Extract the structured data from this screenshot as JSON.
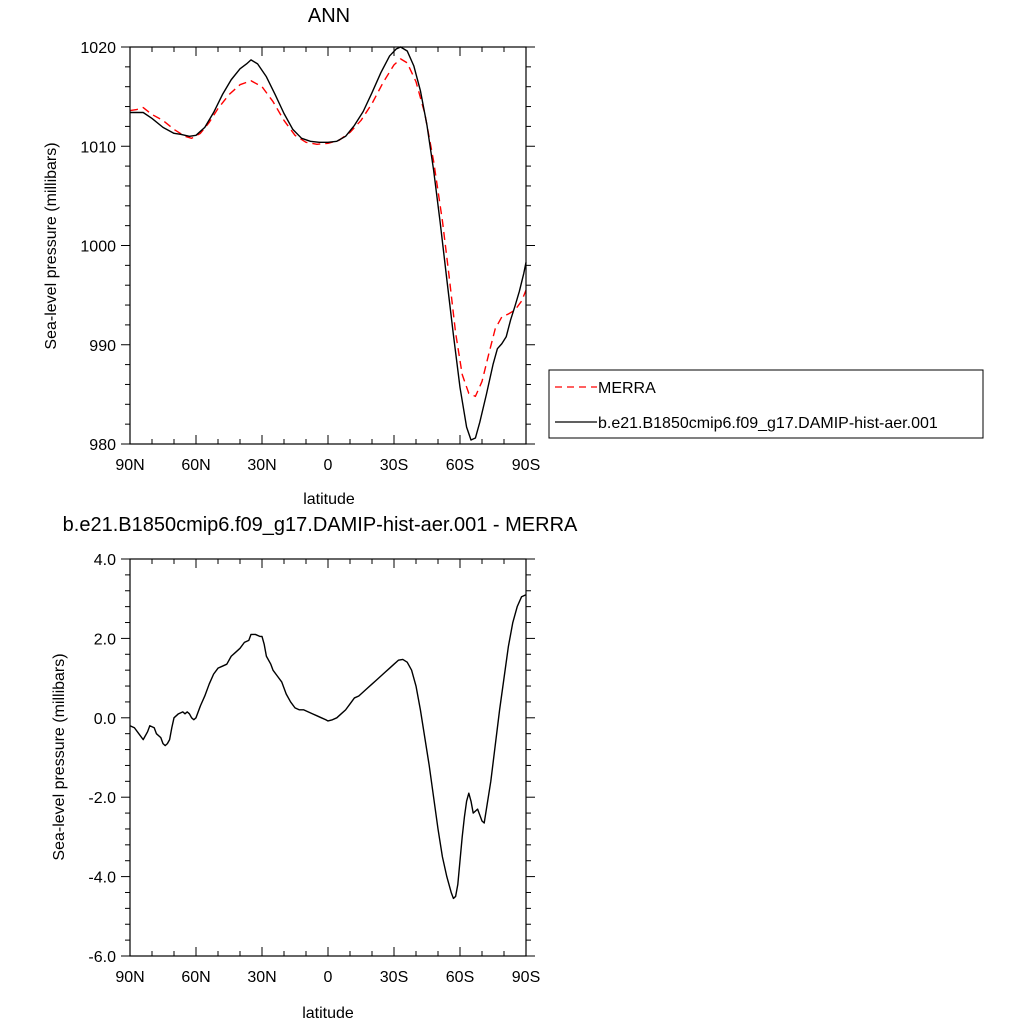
{
  "chart_data": [
    {
      "type": "line",
      "title": "ANN",
      "xlabel": "latitude",
      "ylabel": "Sea-level pressure (millibars)",
      "xlim": [
        90,
        -90
      ],
      "ylim": [
        980,
        1020
      ],
      "x_ticks": [
        90,
        60,
        30,
        0,
        -30,
        -60,
        -90
      ],
      "x_tick_labels": [
        "90N",
        "60N",
        "30N",
        "0",
        "30S",
        "60S",
        "90S"
      ],
      "y_ticks": [
        980,
        990,
        1000,
        1010,
        1020
      ],
      "y_tick_labels": [
        "980",
        "990",
        "1000",
        "1010",
        "1020"
      ],
      "grid": false,
      "legend_position": "right",
      "series": [
        {
          "name": "MERRA",
          "color": "#ff0000",
          "style": "dashed",
          "points": [
            [
              90,
              1013.6
            ],
            [
              87,
              1013.7
            ],
            [
              84,
              1013.9
            ],
            [
              80,
              1013.2
            ],
            [
              75,
              1012.6
            ],
            [
              70,
              1011.7
            ],
            [
              65,
              1011.0
            ],
            [
              62,
              1010.8
            ],
            [
              58,
              1011.3
            ],
            [
              54,
              1012.4
            ],
            [
              50,
              1013.8
            ],
            [
              45,
              1015.2
            ],
            [
              40,
              1016.2
            ],
            [
              35,
              1016.6
            ],
            [
              30,
              1016.0
            ],
            [
              25,
              1014.5
            ],
            [
              20,
              1012.6
            ],
            [
              15,
              1011.1
            ],
            [
              10,
              1010.4
            ],
            [
              5,
              1010.2
            ],
            [
              0,
              1010.3
            ],
            [
              -5,
              1010.6
            ],
            [
              -10,
              1011.4
            ],
            [
              -15,
              1012.6
            ],
            [
              -20,
              1014.3
            ],
            [
              -25,
              1016.4
            ],
            [
              -30,
              1018.2
            ],
            [
              -33,
              1018.8
            ],
            [
              -36,
              1018.4
            ],
            [
              -40,
              1016.5
            ],
            [
              -44,
              1013.3
            ],
            [
              -48,
              1008.5
            ],
            [
              -52,
              1002.5
            ],
            [
              -55,
              997.0
            ],
            [
              -58,
              991.2
            ],
            [
              -61,
              987.0
            ],
            [
              -64,
              985.1
            ],
            [
              -67,
              984.8
            ],
            [
              -70,
              986.3
            ],
            [
              -73,
              989.0
            ],
            [
              -76,
              991.6
            ],
            [
              -79,
              992.8
            ],
            [
              -82,
              993.1
            ],
            [
              -85,
              993.5
            ],
            [
              -88,
              994.4
            ],
            [
              -90,
              995.5
            ]
          ]
        },
        {
          "name": "b.e21.B1850cmip6.f09_g17.DAMIP-hist-aer.001",
          "color": "#000000",
          "style": "solid",
          "points": [
            [
              90,
              1013.4
            ],
            [
              87,
              1013.4
            ],
            [
              84,
              1013.4
            ],
            [
              80,
              1012.8
            ],
            [
              75,
              1011.9
            ],
            [
              70,
              1011.3
            ],
            [
              67,
              1011.2
            ],
            [
              63,
              1011.0
            ],
            [
              60,
              1011.1
            ],
            [
              56,
              1011.9
            ],
            [
              52,
              1013.4
            ],
            [
              48,
              1015.2
            ],
            [
              44,
              1016.7
            ],
            [
              40,
              1017.8
            ],
            [
              37,
              1018.3
            ],
            [
              35,
              1018.7
            ],
            [
              32,
              1018.3
            ],
            [
              28,
              1017.0
            ],
            [
              24,
              1015.2
            ],
            [
              20,
              1013.3
            ],
            [
              16,
              1011.7
            ],
            [
              12,
              1010.8
            ],
            [
              8,
              1010.5
            ],
            [
              4,
              1010.4
            ],
            [
              0,
              1010.4
            ],
            [
              -4,
              1010.5
            ],
            [
              -8,
              1011.0
            ],
            [
              -12,
              1012.1
            ],
            [
              -16,
              1013.5
            ],
            [
              -20,
              1015.4
            ],
            [
              -24,
              1017.4
            ],
            [
              -28,
              1019.1
            ],
            [
              -31,
              1019.8
            ],
            [
              -33,
              1020.0
            ],
            [
              -36,
              1019.6
            ],
            [
              -39,
              1018.1
            ],
            [
              -42,
              1015.6
            ],
            [
              -45,
              1012.1
            ],
            [
              -48,
              1007.6
            ],
            [
              -51,
              1002.3
            ],
            [
              -54,
              996.6
            ],
            [
              -57,
              991.0
            ],
            [
              -60,
              985.7
            ],
            [
              -63,
              981.7
            ],
            [
              -65,
              980.4
            ],
            [
              -67,
              980.6
            ],
            [
              -69,
              982.2
            ],
            [
              -72,
              985.0
            ],
            [
              -75,
              988.0
            ],
            [
              -77,
              989.6
            ],
            [
              -79,
              990.1
            ],
            [
              -81,
              990.8
            ],
            [
              -83,
              992.5
            ],
            [
              -85,
              993.9
            ],
            [
              -87,
              995.4
            ],
            [
              -89,
              997.2
            ],
            [
              -90,
              998.3
            ]
          ]
        }
      ]
    },
    {
      "type": "line",
      "title": "b.e21.B1850cmip6.f09_g17.DAMIP-hist-aer.001 - MERRA",
      "xlabel": "latitude",
      "ylabel": "Sea-level pressure (millibars)",
      "xlim": [
        90,
        -90
      ],
      "ylim": [
        -6,
        4
      ],
      "x_ticks": [
        90,
        60,
        30,
        0,
        -30,
        -60,
        -90
      ],
      "x_tick_labels": [
        "90N",
        "60N",
        "30N",
        "0",
        "30S",
        "60S",
        "90S"
      ],
      "y_ticks": [
        -6,
        -4,
        -2,
        0,
        2,
        4
      ],
      "y_tick_labels": [
        "-6.0",
        "-4.0",
        "-2.0",
        "0.0",
        "2.0",
        "4.0"
      ],
      "grid": false,
      "series": [
        {
          "color": "#000000",
          "style": "solid",
          "points": [
            [
              90,
              -0.2
            ],
            [
              88,
              -0.25
            ],
            [
              86,
              -0.4
            ],
            [
              84,
              -0.55
            ],
            [
              82,
              -0.35
            ],
            [
              81,
              -0.2
            ],
            [
              79,
              -0.25
            ],
            [
              78,
              -0.4
            ],
            [
              76,
              -0.5
            ],
            [
              75,
              -0.65
            ],
            [
              74,
              -0.7
            ],
            [
              73,
              -0.65
            ],
            [
              72,
              -0.55
            ],
            [
              71,
              -0.25
            ],
            [
              70,
              0.0
            ],
            [
              68,
              0.1
            ],
            [
              66,
              0.15
            ],
            [
              65,
              0.1
            ],
            [
              64,
              0.15
            ],
            [
              63,
              0.1
            ],
            [
              62,
              0.0
            ],
            [
              61,
              -0.05
            ],
            [
              60,
              0.0
            ],
            [
              58,
              0.3
            ],
            [
              56,
              0.55
            ],
            [
              54,
              0.85
            ],
            [
              52,
              1.1
            ],
            [
              50,
              1.25
            ],
            [
              48,
              1.3
            ],
            [
              46,
              1.35
            ],
            [
              44,
              1.55
            ],
            [
              42,
              1.65
            ],
            [
              40,
              1.75
            ],
            [
              38,
              1.9
            ],
            [
              36,
              1.95
            ],
            [
              35,
              2.1
            ],
            [
              33,
              2.1
            ],
            [
              31,
              2.05
            ],
            [
              30,
              2.05
            ],
            [
              29,
              1.85
            ],
            [
              28,
              1.55
            ],
            [
              26,
              1.35
            ],
            [
              25,
              1.2
            ],
            [
              23,
              1.05
            ],
            [
              21,
              0.9
            ],
            [
              19,
              0.6
            ],
            [
              17,
              0.4
            ],
            [
              15,
              0.25
            ],
            [
              13,
              0.2
            ],
            [
              11,
              0.2
            ],
            [
              9,
              0.15
            ],
            [
              7,
              0.1
            ],
            [
              5,
              0.05
            ],
            [
              3,
              0.0
            ],
            [
              1,
              -0.05
            ],
            [
              0,
              -0.08
            ],
            [
              -2,
              -0.05
            ],
            [
              -4,
              0.0
            ],
            [
              -6,
              0.1
            ],
            [
              -8,
              0.2
            ],
            [
              -10,
              0.35
            ],
            [
              -12,
              0.5
            ],
            [
              -14,
              0.55
            ],
            [
              -16,
              0.65
            ],
            [
              -18,
              0.75
            ],
            [
              -20,
              0.85
            ],
            [
              -22,
              0.95
            ],
            [
              -24,
              1.05
            ],
            [
              -26,
              1.15
            ],
            [
              -28,
              1.25
            ],
            [
              -30,
              1.35
            ],
            [
              -32,
              1.45
            ],
            [
              -34,
              1.47
            ],
            [
              -36,
              1.4
            ],
            [
              -38,
              1.2
            ],
            [
              -40,
              0.8
            ],
            [
              -42,
              0.2
            ],
            [
              -44,
              -0.5
            ],
            [
              -46,
              -1.2
            ],
            [
              -48,
              -2.0
            ],
            [
              -50,
              -2.8
            ],
            [
              -52,
              -3.5
            ],
            [
              -54,
              -4.0
            ],
            [
              -56,
              -4.4
            ],
            [
              -57,
              -4.55
            ],
            [
              -58,
              -4.5
            ],
            [
              -59,
              -4.2
            ],
            [
              -60,
              -3.6
            ],
            [
              -61,
              -3.0
            ],
            [
              -62,
              -2.5
            ],
            [
              -63,
              -2.1
            ],
            [
              -64,
              -1.9
            ],
            [
              -65,
              -2.1
            ],
            [
              -66,
              -2.4
            ],
            [
              -67,
              -2.35
            ],
            [
              -68,
              -2.3
            ],
            [
              -69,
              -2.45
            ],
            [
              -70,
              -2.6
            ],
            [
              -71,
              -2.65
            ],
            [
              -72,
              -2.3
            ],
            [
              -74,
              -1.6
            ],
            [
              -76,
              -0.7
            ],
            [
              -78,
              0.2
            ],
            [
              -80,
              1.0
            ],
            [
              -82,
              1.8
            ],
            [
              -84,
              2.4
            ],
            [
              -86,
              2.8
            ],
            [
              -88,
              3.05
            ],
            [
              -90,
              3.1
            ]
          ]
        }
      ]
    }
  ]
}
